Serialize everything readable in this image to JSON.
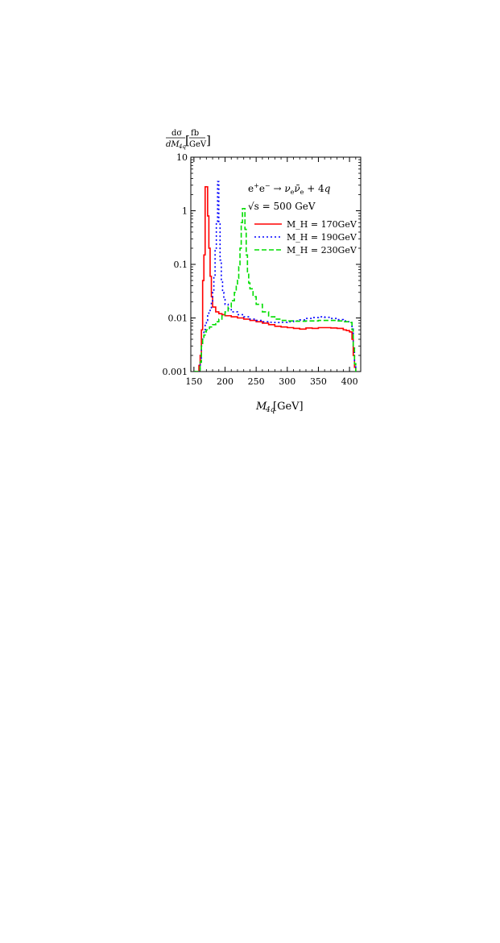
{
  "chart_data": {
    "type": "line",
    "step": true,
    "title": "",
    "ylabel": {
      "num": "dσ",
      "den_main": "dM",
      "den_sub": "4q",
      "unit_num": "fb",
      "unit_den": "GeV"
    },
    "xlabel": {
      "main": "M",
      "sub": "4q",
      "unit": "[GeV]"
    },
    "xlim": [
      145,
      418
    ],
    "ylim": [
      0.001,
      10
    ],
    "yscale": "log",
    "xticks": [
      "150",
      "200",
      "250",
      "300",
      "350",
      "400"
    ],
    "xtick_values": [
      150,
      200,
      250,
      300,
      350,
      400
    ],
    "yticks": [
      "0.001",
      "0.01",
      "0.1",
      "1",
      "10"
    ],
    "ytick_values": [
      0.001,
      0.01,
      0.1,
      1,
      10
    ],
    "grid": false,
    "legend_placement": "top-right",
    "annotation": {
      "process": "e⁺e⁻ → ν_e ν̄_e + 4q",
      "energy": "√s = 500 GeV"
    },
    "legend_entries": [
      {
        "text": "M_H = 170GeV",
        "series": 0
      },
      {
        "text": "M_H = 190GeV",
        "series": 1
      },
      {
        "text": "M_H = 230GeV",
        "series": 2
      }
    ],
    "series": [
      {
        "name": "M_H = 170GeV",
        "color": "#ff0000",
        "dash": "solid",
        "x": [
          150,
          155,
          158,
          160,
          162,
          164,
          166,
          168,
          170,
          172,
          174,
          176,
          178,
          180,
          185,
          190,
          195,
          200,
          210,
          220,
          230,
          240,
          250,
          260,
          270,
          280,
          290,
          300,
          310,
          320,
          330,
          340,
          350,
          360,
          370,
          380,
          390,
          395,
          400,
          404,
          406,
          408,
          410
        ],
        "y": [
          0.001,
          0.001,
          0.0013,
          0.002,
          0.006,
          0.05,
          0.15,
          2.8,
          2.8,
          0.8,
          0.2,
          0.06,
          0.025,
          0.016,
          0.013,
          0.012,
          0.0115,
          0.011,
          0.0105,
          0.01,
          0.0095,
          0.009,
          0.0085,
          0.008,
          0.0075,
          0.007,
          0.0068,
          0.0066,
          0.0064,
          0.0062,
          0.0065,
          0.0064,
          0.0066,
          0.0066,
          0.0065,
          0.0064,
          0.006,
          0.0058,
          0.0055,
          0.004,
          0.002,
          0.0012,
          0.001
        ]
      },
      {
        "name": "M_H = 190GeV",
        "color": "#0000ff",
        "dash": "dotted",
        "x": [
          150,
          158,
          160,
          162,
          164,
          166,
          168,
          170,
          172,
          174,
          176,
          178,
          180,
          182,
          184,
          186,
          188,
          190,
          192,
          194,
          196,
          198,
          200,
          205,
          210,
          220,
          230,
          240,
          250,
          260,
          270,
          280,
          290,
          300,
          310,
          320,
          330,
          340,
          350,
          360,
          370,
          380,
          390,
          395,
          400,
          404,
          406,
          408,
          410
        ],
        "y": [
          0.001,
          0.001,
          0.0015,
          0.003,
          0.0045,
          0.006,
          0.0075,
          0.009,
          0.011,
          0.013,
          0.015,
          0.02,
          0.03,
          0.06,
          0.2,
          0.6,
          3.5,
          0.6,
          0.12,
          0.05,
          0.03,
          0.022,
          0.018,
          0.015,
          0.013,
          0.0115,
          0.0105,
          0.0095,
          0.009,
          0.0085,
          0.0083,
          0.0082,
          0.0083,
          0.0085,
          0.0088,
          0.0092,
          0.0098,
          0.0102,
          0.0105,
          0.0103,
          0.0098,
          0.0093,
          0.0088,
          0.0085,
          0.0082,
          0.0065,
          0.003,
          0.0014,
          0.001
        ]
      },
      {
        "name": "M_H = 230GeV",
        "color": "#00dd00",
        "dash": "dashed",
        "x": [
          150,
          158,
          160,
          162,
          164,
          166,
          168,
          170,
          175,
          180,
          185,
          190,
          195,
          200,
          205,
          210,
          215,
          218,
          220,
          222,
          224,
          226,
          228,
          230,
          232,
          234,
          236,
          238,
          240,
          245,
          250,
          260,
          270,
          280,
          290,
          300,
          310,
          320,
          330,
          340,
          350,
          360,
          370,
          380,
          390,
          395,
          400,
          404,
          406,
          408,
          410
        ],
        "y": [
          0.001,
          0.001,
          0.0015,
          0.003,
          0.004,
          0.0048,
          0.0055,
          0.006,
          0.0068,
          0.0075,
          0.0085,
          0.0095,
          0.011,
          0.013,
          0.016,
          0.021,
          0.03,
          0.04,
          0.055,
          0.09,
          0.2,
          0.6,
          1.1,
          1.1,
          0.45,
          0.15,
          0.07,
          0.045,
          0.035,
          0.025,
          0.018,
          0.013,
          0.0105,
          0.0095,
          0.009,
          0.0088,
          0.0087,
          0.0087,
          0.0088,
          0.0088,
          0.009,
          0.009,
          0.009,
          0.0088,
          0.0085,
          0.0085,
          0.0082,
          0.006,
          0.003,
          0.0014,
          0.001
        ]
      }
    ]
  }
}
